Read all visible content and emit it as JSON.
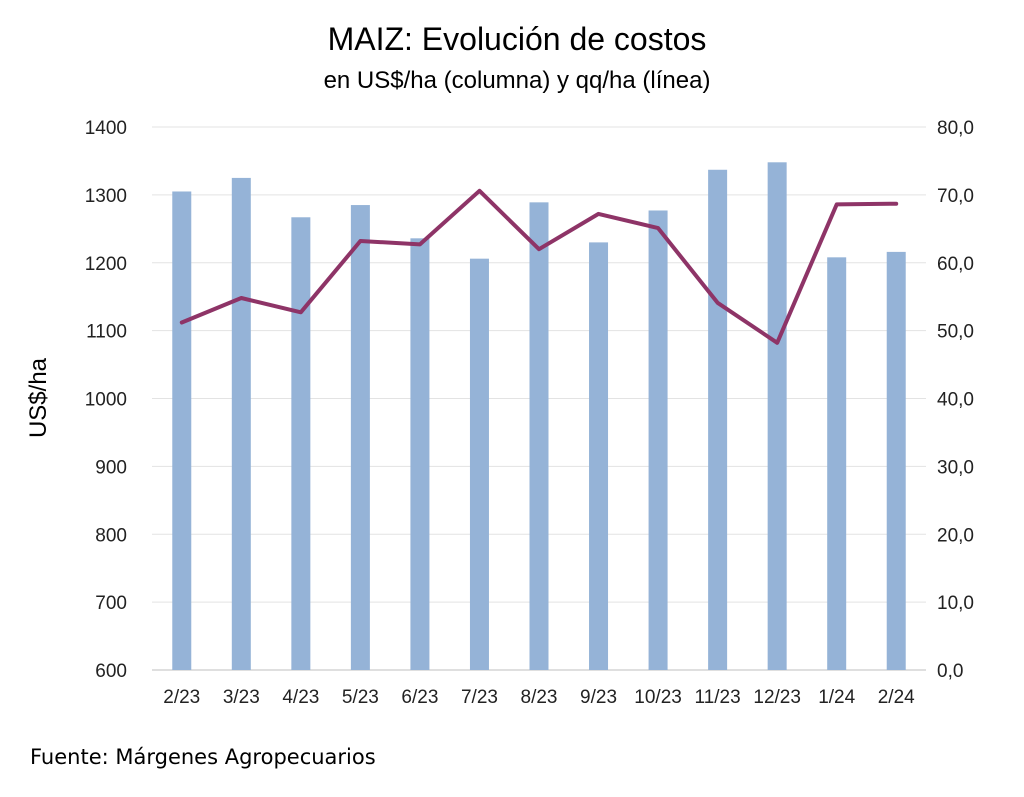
{
  "chart_data": {
    "type": "bar",
    "title": "MAIZ: Evolución de costos",
    "subtitle": "en US$/ha (columna) y qq/ha (línea)",
    "ylabel": "US$/ha",
    "categories": [
      "2/23",
      "3/23",
      "4/23",
      "5/23",
      "6/23",
      "7/23",
      "8/23",
      "9/23",
      "10/23",
      "11/23",
      "12/23",
      "1/24",
      "2/24"
    ],
    "series": [
      {
        "type": "bar",
        "axis": "left",
        "color": "#95B3D7",
        "values": [
          1305,
          1325,
          1267,
          1285,
          1236,
          1206,
          1289,
          1230,
          1277,
          1337,
          1348,
          1208,
          1216
        ]
      },
      {
        "type": "line",
        "axis": "right",
        "color": "#8E3467",
        "values": [
          51.2,
          54.8,
          52.7,
          63.2,
          62.7,
          70.6,
          62.0,
          67.2,
          65.1,
          54.1,
          48.2,
          68.6,
          68.7
        ]
      }
    ],
    "y_left": {
      "min": 600,
      "max": 1400,
      "step": 100,
      "ticks": [
        "600",
        "700",
        "800",
        "900",
        "1000",
        "1100",
        "1200",
        "1300",
        "1400"
      ]
    },
    "y_right": {
      "min": 0,
      "max": 80,
      "step": 10,
      "ticks": [
        "0,0",
        "10,0",
        "20,0",
        "30,0",
        "40,0",
        "50,0",
        "60,0",
        "70,0",
        "80,0"
      ]
    },
    "grid": true,
    "legend": "none",
    "colors": {
      "grid": "#E3E3E3",
      "axis": "#BFBFBF"
    }
  },
  "source": "Fuente: Márgenes Agropecuarios"
}
